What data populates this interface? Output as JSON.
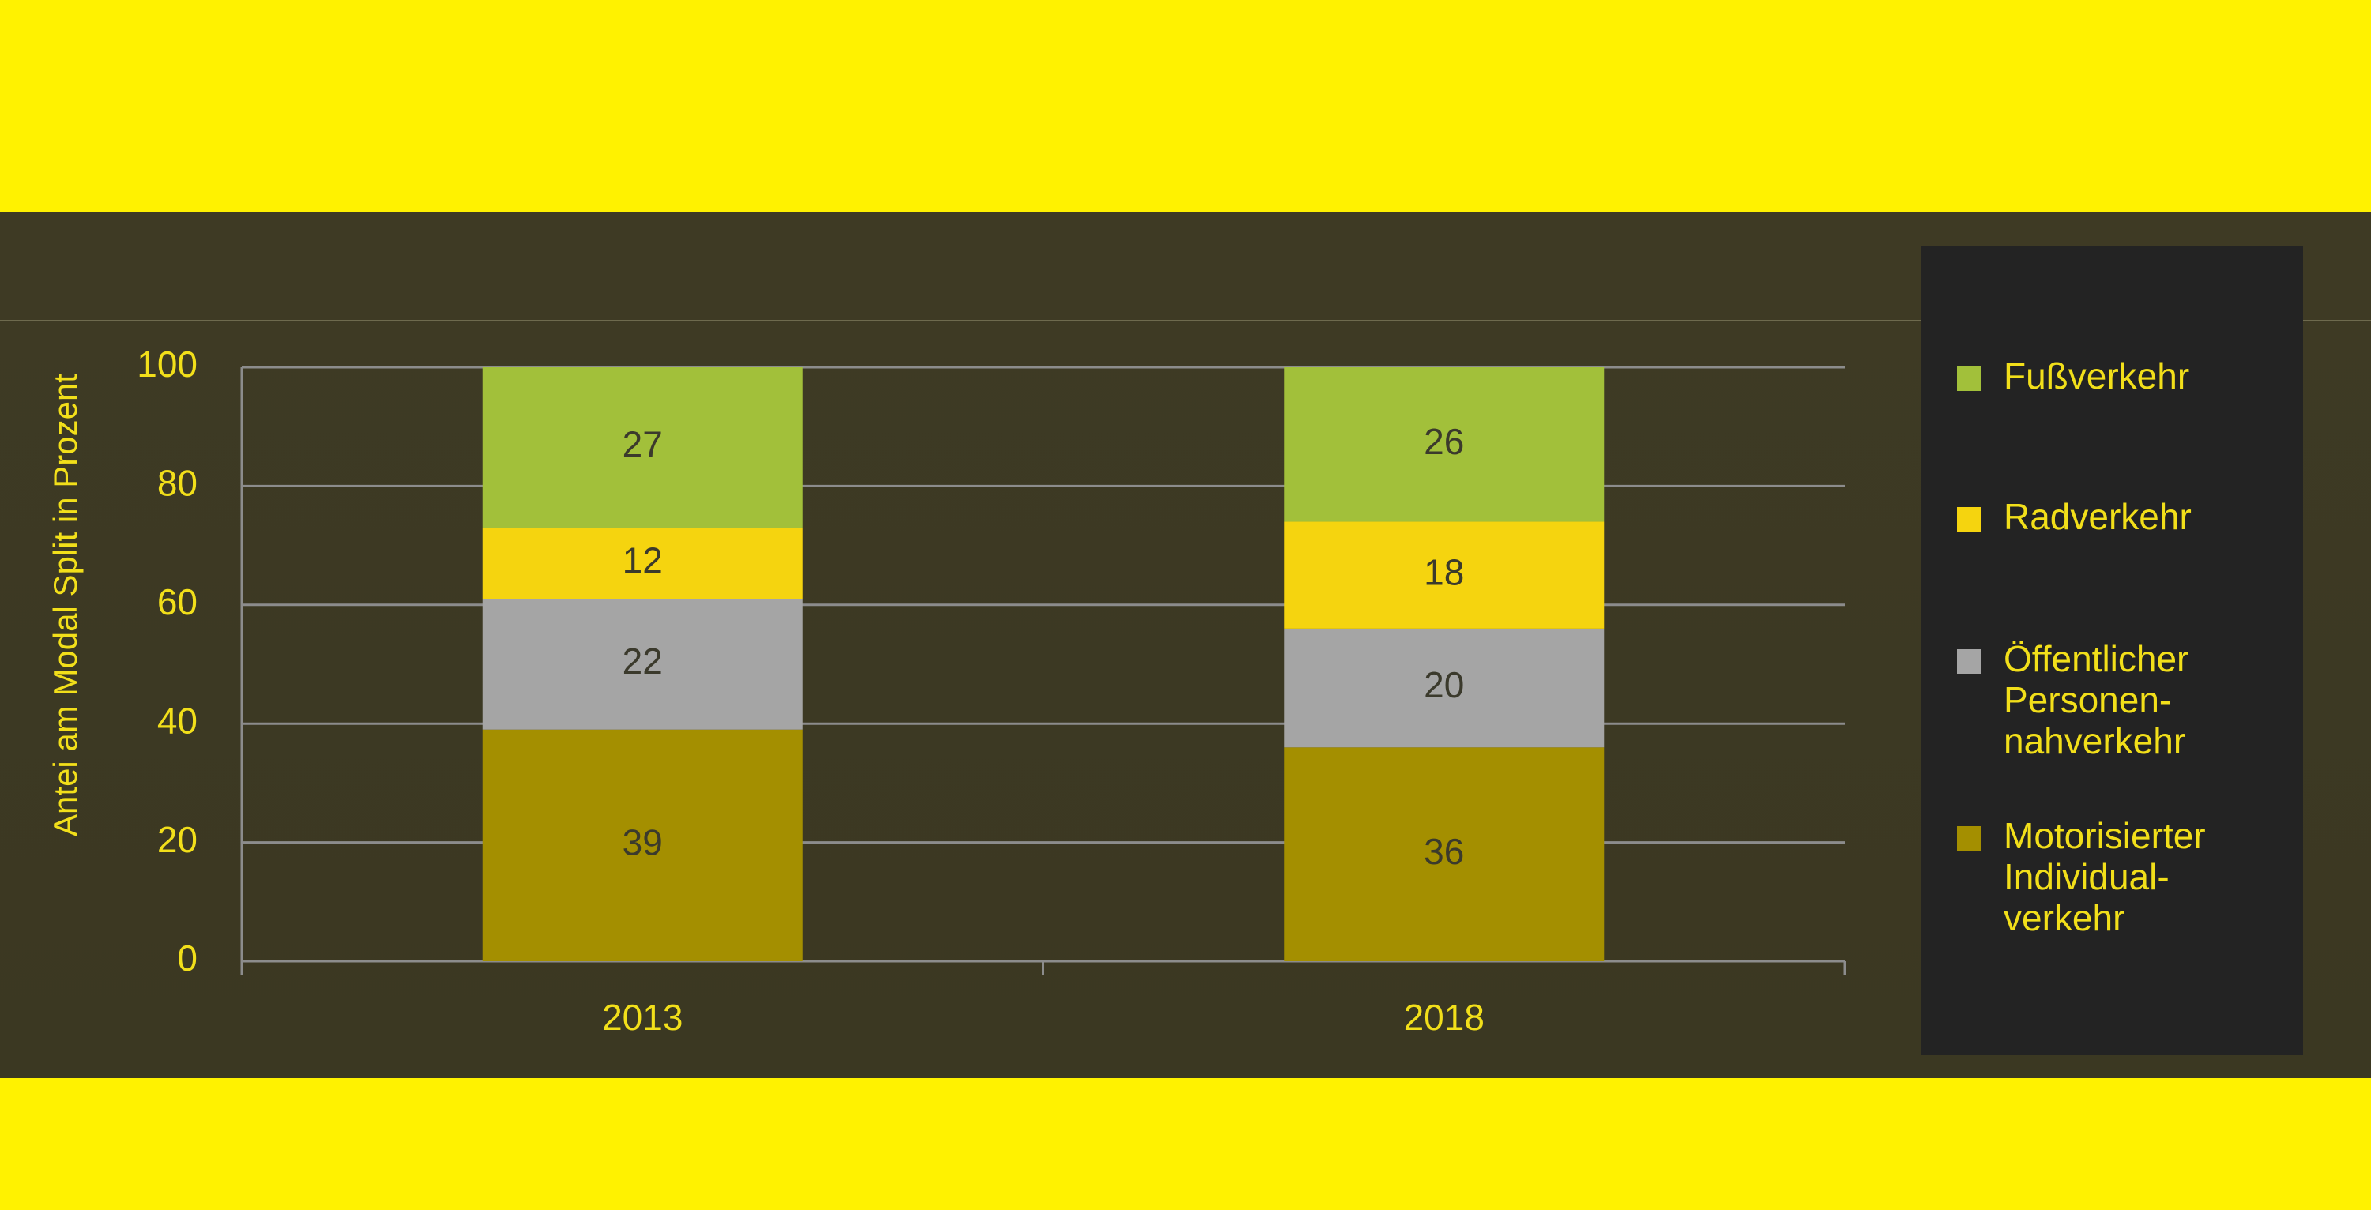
{
  "chart_data": {
    "type": "stacked_bar",
    "y_axis_label": "Antei am Modal Split in Prozent",
    "categories": [
      "2013",
      "2018"
    ],
    "series": [
      {
        "name": "Motorisierter\nIndividual-\nverkehr",
        "color": "#a48f00",
        "values": [
          39,
          36
        ]
      },
      {
        "name": "Öffentlicher\nPersonen-\nnahverkehr",
        "color": "#a5a5a5",
        "values": [
          22,
          20
        ]
      },
      {
        "name": "Radverkehr",
        "color": "#f5d40f",
        "values": [
          12,
          18
        ]
      },
      {
        "name": "Fußverkehr",
        "color": "#a2c03a",
        "values": [
          27,
          26
        ]
      }
    ],
    "ylim": [
      0,
      100
    ],
    "yticks": [
      0,
      20,
      40,
      60,
      80,
      100
    ],
    "grid": true,
    "legend": "right"
  }
}
